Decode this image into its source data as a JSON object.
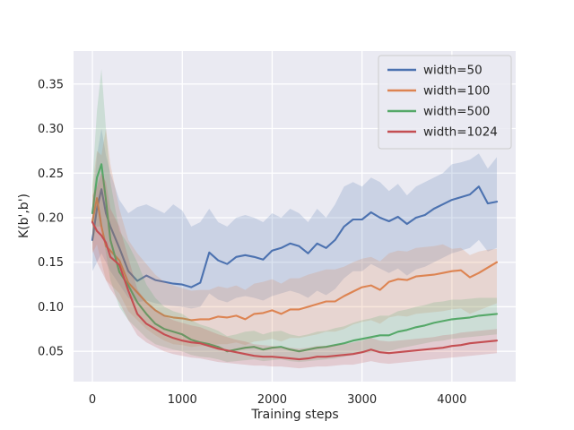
{
  "figure": {
    "background": "#ffffff",
    "plot_background": "#eaeaf2",
    "grid_color": "#ffffff",
    "text_color": "#262626",
    "legend_face": "rgba(234,234,242,0.85)",
    "legend_edge": "#cccccc"
  },
  "chart_data": {
    "type": "line",
    "title": "",
    "xlabel": "Training steps",
    "ylabel": "K(b',b')",
    "grid": true,
    "legend_position": "upper right",
    "xlim": [
      -210,
      4710
    ],
    "ylim": [
      0.016,
      0.387
    ],
    "xticks": [
      0,
      1000,
      2000,
      3000,
      4000
    ],
    "xtick_labels": [
      "0",
      "1000",
      "2000",
      "3000",
      "4000"
    ],
    "yticks": [
      0.05,
      0.1,
      0.15,
      0.2,
      0.25,
      0.3,
      0.35
    ],
    "ytick_labels": [
      "0.05",
      "0.10",
      "0.15",
      "0.20",
      "0.25",
      "0.30",
      "0.35"
    ],
    "x": [
      0,
      50,
      100,
      150,
      200,
      300,
      400,
      500,
      600,
      700,
      800,
      900,
      1000,
      1100,
      1200,
      1300,
      1400,
      1500,
      1600,
      1700,
      1800,
      1900,
      2000,
      2100,
      2200,
      2300,
      2400,
      2500,
      2600,
      2700,
      2800,
      2900,
      3000,
      3100,
      3200,
      3300,
      3400,
      3500,
      3600,
      3700,
      3800,
      3900,
      4000,
      4100,
      4200,
      4300,
      4400,
      4500
    ],
    "series": [
      {
        "name": "width=50",
        "color": "#4c72b0",
        "values": [
          0.175,
          0.21,
          0.232,
          0.205,
          0.19,
          0.166,
          0.14,
          0.129,
          0.135,
          0.13,
          0.128,
          0.126,
          0.125,
          0.122,
          0.127,
          0.161,
          0.152,
          0.148,
          0.156,
          0.158,
          0.156,
          0.153,
          0.163,
          0.166,
          0.171,
          0.168,
          0.16,
          0.171,
          0.166,
          0.175,
          0.19,
          0.198,
          0.198,
          0.206,
          0.2,
          0.196,
          0.201,
          0.193,
          0.2,
          0.203,
          0.21,
          0.215,
          0.22,
          0.223,
          0.226,
          0.235,
          0.216,
          0.218
        ],
        "band_low": [
          0.14,
          0.15,
          0.16,
          0.15,
          0.14,
          0.125,
          0.11,
          0.105,
          0.107,
          0.104,
          0.102,
          0.101,
          0.1,
          0.098,
          0.1,
          0.115,
          0.108,
          0.105,
          0.11,
          0.112,
          0.11,
          0.107,
          0.112,
          0.115,
          0.118,
          0.115,
          0.11,
          0.118,
          0.113,
          0.12,
          0.132,
          0.14,
          0.14,
          0.148,
          0.143,
          0.138,
          0.143,
          0.135,
          0.142,
          0.145,
          0.15,
          0.155,
          0.16,
          0.163,
          0.166,
          0.175,
          0.162,
          0.166
        ],
        "band_high": [
          0.21,
          0.27,
          0.3,
          0.27,
          0.25,
          0.22,
          0.205,
          0.212,
          0.215,
          0.21,
          0.205,
          0.215,
          0.208,
          0.19,
          0.195,
          0.21,
          0.195,
          0.19,
          0.2,
          0.203,
          0.2,
          0.195,
          0.205,
          0.2,
          0.21,
          0.205,
          0.195,
          0.21,
          0.2,
          0.215,
          0.235,
          0.24,
          0.235,
          0.245,
          0.24,
          0.23,
          0.238,
          0.225,
          0.235,
          0.24,
          0.245,
          0.25,
          0.26,
          0.262,
          0.265,
          0.272,
          0.255,
          0.268
        ]
      },
      {
        "name": "width=100",
        "color": "#dd8452",
        "values": [
          0.196,
          0.222,
          0.19,
          0.168,
          0.163,
          0.152,
          0.127,
          0.116,
          0.105,
          0.096,
          0.09,
          0.088,
          0.087,
          0.085,
          0.086,
          0.086,
          0.089,
          0.088,
          0.09,
          0.086,
          0.092,
          0.093,
          0.096,
          0.092,
          0.097,
          0.097,
          0.1,
          0.103,
          0.106,
          0.106,
          0.112,
          0.117,
          0.122,
          0.124,
          0.119,
          0.128,
          0.131,
          0.13,
          0.134,
          0.135,
          0.136,
          0.138,
          0.14,
          0.141,
          0.133,
          0.138,
          0.144,
          0.15
        ],
        "band_low": [
          0.16,
          0.17,
          0.15,
          0.13,
          0.125,
          0.115,
          0.095,
          0.085,
          0.075,
          0.068,
          0.062,
          0.058,
          0.057,
          0.055,
          0.056,
          0.056,
          0.058,
          0.058,
          0.06,
          0.057,
          0.061,
          0.062,
          0.064,
          0.061,
          0.065,
          0.065,
          0.067,
          0.069,
          0.072,
          0.072,
          0.075,
          0.08,
          0.083,
          0.085,
          0.081,
          0.088,
          0.09,
          0.089,
          0.092,
          0.093,
          0.094,
          0.095,
          0.097,
          0.098,
          0.092,
          0.096,
          0.1,
          0.104
        ],
        "band_high": [
          0.235,
          0.275,
          0.27,
          0.3,
          0.26,
          0.21,
          0.175,
          0.16,
          0.148,
          0.136,
          0.128,
          0.124,
          0.121,
          0.118,
          0.119,
          0.119,
          0.123,
          0.121,
          0.124,
          0.119,
          0.126,
          0.128,
          0.131,
          0.126,
          0.132,
          0.132,
          0.136,
          0.139,
          0.142,
          0.142,
          0.145,
          0.15,
          0.154,
          0.156,
          0.151,
          0.16,
          0.163,
          0.162,
          0.166,
          0.167,
          0.168,
          0.17,
          0.165,
          0.166,
          0.158,
          0.162,
          0.164,
          0.165
        ]
      },
      {
        "name": "width=500",
        "color": "#55a868",
        "values": [
          0.205,
          0.245,
          0.26,
          0.22,
          0.175,
          0.139,
          0.124,
          0.105,
          0.092,
          0.081,
          0.075,
          0.072,
          0.069,
          0.063,
          0.06,
          0.058,
          0.055,
          0.05,
          0.052,
          0.054,
          0.055,
          0.052,
          0.054,
          0.055,
          0.052,
          0.05,
          0.052,
          0.054,
          0.055,
          0.057,
          0.059,
          0.062,
          0.064,
          0.066,
          0.068,
          0.068,
          0.072,
          0.074,
          0.077,
          0.079,
          0.082,
          0.084,
          0.086,
          0.087,
          0.088,
          0.09,
          0.091,
          0.092
        ],
        "band_low": [
          0.17,
          0.19,
          0.19,
          0.16,
          0.13,
          0.1,
          0.085,
          0.075,
          0.065,
          0.058,
          0.055,
          0.052,
          0.05,
          0.046,
          0.044,
          0.043,
          0.041,
          0.038,
          0.039,
          0.04,
          0.041,
          0.039,
          0.04,
          0.041,
          0.039,
          0.038,
          0.039,
          0.04,
          0.041,
          0.042,
          0.044,
          0.046,
          0.048,
          0.049,
          0.05,
          0.05,
          0.053,
          0.055,
          0.057,
          0.059,
          0.061,
          0.062,
          0.064,
          0.065,
          0.066,
          0.067,
          0.068,
          0.069
        ],
        "band_high": [
          0.24,
          0.32,
          0.367,
          0.3,
          0.24,
          0.185,
          0.17,
          0.15,
          0.125,
          0.11,
          0.1,
          0.095,
          0.092,
          0.085,
          0.08,
          0.077,
          0.073,
          0.067,
          0.069,
          0.072,
          0.073,
          0.069,
          0.072,
          0.073,
          0.069,
          0.067,
          0.069,
          0.072,
          0.073,
          0.076,
          0.078,
          0.082,
          0.085,
          0.087,
          0.09,
          0.09,
          0.095,
          0.097,
          0.1,
          0.102,
          0.105,
          0.106,
          0.108,
          0.108,
          0.109,
          0.11,
          0.11,
          0.11
        ]
      },
      {
        "name": "width=1024",
        "color": "#c44e52",
        "values": [
          0.195,
          0.185,
          0.18,
          0.172,
          0.156,
          0.147,
          0.118,
          0.092,
          0.081,
          0.075,
          0.069,
          0.065,
          0.062,
          0.06,
          0.059,
          0.056,
          0.053,
          0.051,
          0.049,
          0.047,
          0.045,
          0.044,
          0.044,
          0.043,
          0.042,
          0.041,
          0.042,
          0.044,
          0.044,
          0.045,
          0.046,
          0.047,
          0.049,
          0.052,
          0.049,
          0.048,
          0.049,
          0.05,
          0.051,
          0.052,
          0.053,
          0.054,
          0.056,
          0.057,
          0.059,
          0.06,
          0.061,
          0.062
        ],
        "band_low": [
          0.165,
          0.15,
          0.14,
          0.13,
          0.12,
          0.105,
          0.085,
          0.068,
          0.06,
          0.055,
          0.05,
          0.047,
          0.045,
          0.043,
          0.042,
          0.04,
          0.038,
          0.037,
          0.036,
          0.035,
          0.034,
          0.034,
          0.033,
          0.033,
          0.032,
          0.031,
          0.032,
          0.033,
          0.033,
          0.034,
          0.035,
          0.035,
          0.037,
          0.039,
          0.037,
          0.036,
          0.037,
          0.038,
          0.039,
          0.04,
          0.041,
          0.042,
          0.043,
          0.044,
          0.045,
          0.046,
          0.047,
          0.048
        ],
        "band_high": [
          0.225,
          0.235,
          0.25,
          0.24,
          0.21,
          0.19,
          0.155,
          0.12,
          0.105,
          0.097,
          0.09,
          0.085,
          0.082,
          0.079,
          0.077,
          0.073,
          0.069,
          0.066,
          0.063,
          0.061,
          0.058,
          0.057,
          0.056,
          0.055,
          0.054,
          0.053,
          0.054,
          0.056,
          0.056,
          0.057,
          0.058,
          0.06,
          0.062,
          0.065,
          0.062,
          0.061,
          0.062,
          0.063,
          0.064,
          0.065,
          0.066,
          0.068,
          0.069,
          0.071,
          0.072,
          0.073,
          0.074,
          0.075
        ]
      }
    ]
  }
}
